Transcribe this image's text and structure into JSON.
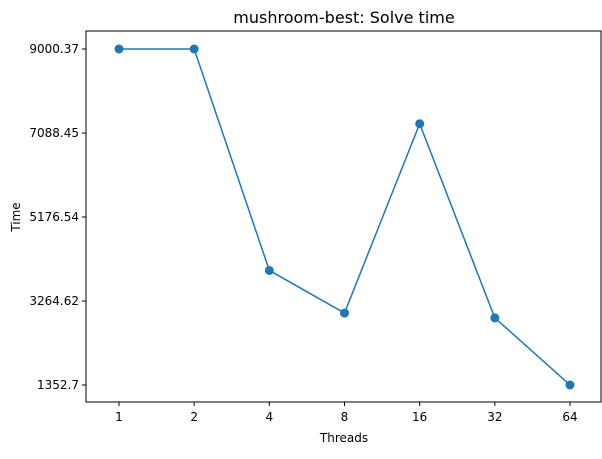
{
  "chart_data": {
    "type": "line",
    "title": "mushroom-best: Solve time",
    "xlabel": "Threads",
    "ylabel": "Time",
    "categories": [
      "1",
      "2",
      "4",
      "8",
      "16",
      "32",
      "64"
    ],
    "yticks": [
      "1352.7",
      "3264.62",
      "5176.54",
      "7088.45",
      "9000.37"
    ],
    "series": [
      {
        "values": [
          9000.37,
          9000.37,
          3960,
          2990,
          7300,
          2880,
          1352.7
        ],
        "color": "#1f77b4"
      }
    ],
    "grid": false,
    "legend": "none"
  }
}
